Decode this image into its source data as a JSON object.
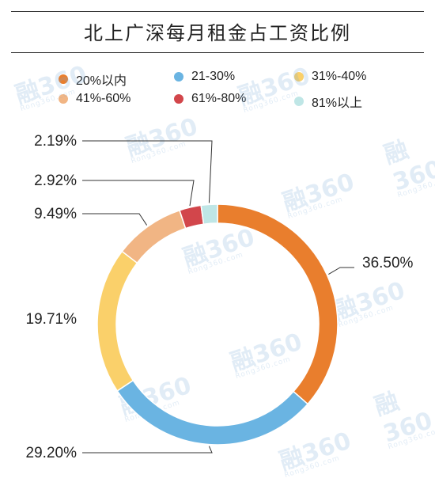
{
  "header": {
    "title": "北上广深每月租金占工资比例"
  },
  "watermark": {
    "logo": "融360",
    "url": "Rong360.com"
  },
  "colors": {
    "slice_0": "#E97E2D",
    "slice_1": "#6AB4E2",
    "slice_2": "#FAD06A",
    "slice_3": "#F1B584",
    "slice_4": "#D2464B",
    "slice_5": "#BFE6E6",
    "leader": "#333333"
  },
  "chart_data": {
    "type": "pie",
    "variant": "donut",
    "title": "北上广深每月租金占工资比例",
    "legend_position": "top",
    "categories": [
      "20%以内",
      "21-30%",
      "31%-40%",
      "41%-60%",
      "61%-80%",
      "81%以上"
    ],
    "values": [
      36.5,
      29.2,
      19.71,
      9.49,
      2.92,
      2.19
    ],
    "value_labels": [
      "36.50%",
      "29.20%",
      "19.71%",
      "9.49%",
      "2.92%",
      "2.19%"
    ],
    "start_angle_deg": 0,
    "direction": "clockwise"
  }
}
